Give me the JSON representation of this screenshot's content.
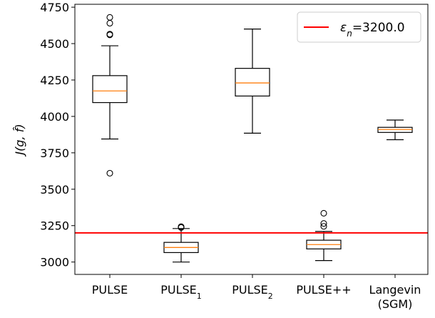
{
  "chart_data": {
    "type": "box",
    "ylabel": "J(g, f̂)",
    "xlabel": "",
    "ylim": [
      2915,
      4770
    ],
    "yticks": [
      3000,
      3250,
      3500,
      3750,
      4000,
      4250,
      4500,
      4750
    ],
    "grid": false,
    "legend_position": "top-right",
    "categories": [
      {
        "label": "PULSE",
        "sub": "",
        "label2": ""
      },
      {
        "label": "PULSE",
        "sub": "1",
        "label2": ""
      },
      {
        "label": "PULSE",
        "sub": "2",
        "label2": ""
      },
      {
        "label": "PULSE++",
        "sub": "",
        "label2": ""
      },
      {
        "label": "Langevin",
        "sub": "",
        "label2": "(SGM)"
      }
    ],
    "boxes": [
      {
        "whisker_low": 3845,
        "q1": 4095,
        "median": 4175,
        "q3": 4280,
        "whisker_high": 4485,
        "outliers": [
          3610,
          4560,
          4565,
          4640,
          4680
        ]
      },
      {
        "whisker_low": 3000,
        "q1": 3065,
        "median": 3100,
        "q3": 3135,
        "whisker_high": 3230,
        "outliers": [
          3237,
          3243
        ]
      },
      {
        "whisker_low": 3885,
        "q1": 4140,
        "median": 4230,
        "q3": 4330,
        "whisker_high": 4600,
        "outliers": []
      },
      {
        "whisker_low": 3010,
        "q1": 3090,
        "median": 3120,
        "q3": 3150,
        "whisker_high": 3210,
        "outliers": [
          3245,
          3265,
          3335
        ]
      },
      {
        "whisker_low": 3840,
        "q1": 3890,
        "median": 3910,
        "q3": 3925,
        "whisker_high": 3975,
        "outliers": []
      }
    ],
    "reference_line": {
      "value": 3200.0,
      "color": "#ff0000"
    },
    "legend": {
      "symbol": "ε",
      "subscript": "n",
      "value_text": "=3200.0"
    },
    "colors": {
      "box": "#000000",
      "median": "#ff7f0e",
      "reference": "#ff0000"
    }
  }
}
